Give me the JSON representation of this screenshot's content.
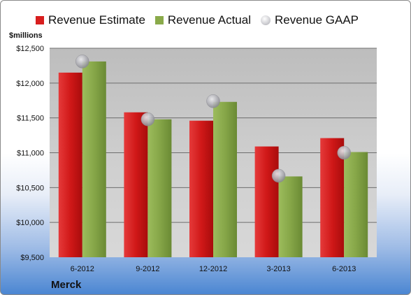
{
  "chart_data": {
    "type": "bar",
    "categories": [
      "6-2012",
      "9-2012",
      "12-2012",
      "3-2013",
      "6-2013"
    ],
    "series": [
      {
        "name": "Revenue Estimate",
        "type": "bar",
        "color": "#d81e1e",
        "values": [
          12150,
          11580,
          11460,
          11090,
          11210
        ]
      },
      {
        "name": "Revenue Actual",
        "type": "bar",
        "color": "#8aaa4a",
        "values": [
          12310,
          11480,
          11730,
          10660,
          11010
        ]
      },
      {
        "name": "Revenue GAAP",
        "type": "marker",
        "color": "#b6b6bc",
        "values": [
          12310,
          11480,
          11740,
          10670,
          11000
        ]
      }
    ],
    "ylabel": "$millions",
    "ylim": [
      9500,
      12500
    ],
    "yticks": [
      9500,
      10000,
      10500,
      11000,
      11500,
      12000,
      12500
    ],
    "ytick_labels": [
      "$9,500",
      "$10,000",
      "$10,500",
      "$11,000",
      "$11,500",
      "$12,000",
      "$12,500"
    ],
    "legend_position": "top",
    "grid": true
  },
  "company_label": "Merck"
}
